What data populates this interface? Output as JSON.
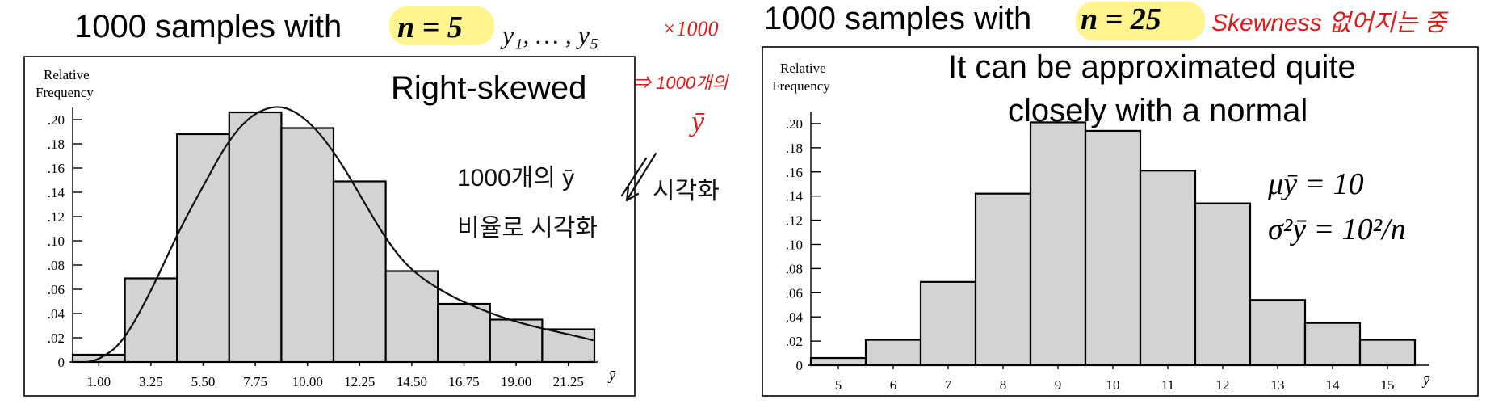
{
  "left_heading": {
    "prefix": "1000 samples with ",
    "math": "n = 5"
  },
  "right_heading": {
    "prefix": "1000 samples with ",
    "math": "n = 25"
  },
  "handwritten": {
    "left_sample": "y₁, … , y₅",
    "times": "×1000",
    "count": "⇒ 1000개의",
    "ybar": "ȳ",
    "skewness_note": "Skewness 없어지는 중"
  },
  "handwritten_black": {
    "line1": "1000개의 ȳ",
    "line2": "비율로 시각화",
    "arrow_note": "시각화"
  },
  "annotations": {
    "right_skewed": "Right-skewed",
    "approx_line1": "It can be approximated quite",
    "approx_line2": "closely with  a normal",
    "mu": "μȳ = 10",
    "sigma": "σ²ȳ = 10²/n"
  },
  "chart_data": [
    {
      "type": "bar",
      "title": "1000 samples with n = 5",
      "ylabel_line1": "Relative",
      "ylabel_line2": "Frequency",
      "xlabel": "ȳ",
      "categories": [
        "1.00",
        "3.25",
        "5.50",
        "7.75",
        "10.00",
        "12.25",
        "14.50",
        "16.75",
        "19.00",
        "21.25"
      ],
      "values": [
        0.006,
        0.069,
        0.188,
        0.206,
        0.193,
        0.149,
        0.075,
        0.048,
        0.035,
        0.027
      ],
      "ytick_labels": [
        "0",
        ".02",
        ".04",
        ".06",
        ".08",
        ".10",
        ".12",
        ".14",
        ".16",
        ".18",
        ".20"
      ],
      "ylim": [
        0,
        0.21
      ],
      "overlay_curve": "right-skewed density sketch",
      "curve": [
        [
          0.5,
          0.0
        ],
        [
          1,
          0.002
        ],
        [
          2,
          0.015
        ],
        [
          3.25,
          0.058
        ],
        [
          4.5,
          0.11
        ],
        [
          5.5,
          0.145
        ],
        [
          6.5,
          0.18
        ],
        [
          7.5,
          0.203
        ],
        [
          8.6,
          0.212
        ],
        [
          9.5,
          0.207
        ],
        [
          10.5,
          0.19
        ],
        [
          11.5,
          0.163
        ],
        [
          12.5,
          0.13
        ],
        [
          13.5,
          0.098
        ],
        [
          14.5,
          0.075
        ],
        [
          16,
          0.056
        ],
        [
          17.5,
          0.043
        ],
        [
          19,
          0.033
        ],
        [
          20.5,
          0.026
        ],
        [
          21.7,
          0.021
        ],
        [
          22.3,
          0.018
        ]
      ],
      "grid": false
    },
    {
      "type": "bar",
      "title": "1000 samples with n = 25",
      "ylabel_line1": "Relative",
      "ylabel_line2": "Frequency",
      "xlabel": "ȳ",
      "categories": [
        "5",
        "6",
        "7",
        "8",
        "9",
        "10",
        "11",
        "12",
        "13",
        "14",
        "15"
      ],
      "values": [
        0.006,
        0.021,
        0.069,
        0.142,
        0.201,
        0.194,
        0.161,
        0.134,
        0.054,
        0.035,
        0.021
      ],
      "ytick_labels": [
        "0",
        ".02",
        ".04",
        ".06",
        ".08",
        ".10",
        ".12",
        ".14",
        ".16",
        ".18",
        ".20"
      ],
      "ylim": [
        0,
        0.21
      ],
      "grid": false
    }
  ]
}
